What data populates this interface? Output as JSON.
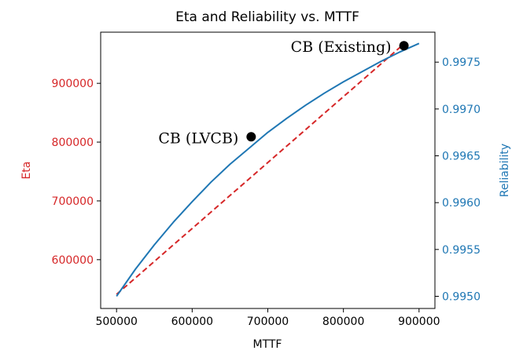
{
  "chart_data": {
    "type": "line",
    "title": "Eta and Reliability vs. MTTF",
    "xlabel": "MTTF",
    "y_left_label": "Eta",
    "y_right_label": "Reliability",
    "xlim": [
      479000,
      921000
    ],
    "y_left_lim": [
      517000,
      987000
    ],
    "y_right_lim": [
      0.99487,
      0.99782
    ],
    "x_ticks": [
      500000,
      600000,
      700000,
      800000,
      900000
    ],
    "x_tick_labels": [
      "500000",
      "600000",
      "700000",
      "800000",
      "900000"
    ],
    "y_left_ticks": [
      600000,
      700000,
      800000,
      900000
    ],
    "y_left_tick_labels": [
      "600000",
      "700000",
      "800000",
      "900000"
    ],
    "y_right_ticks": [
      0.995,
      0.9955,
      0.996,
      0.9965,
      0.997,
      0.9975
    ],
    "y_right_tick_labels": [
      "0.9950",
      "0.9955",
      "0.9960",
      "0.9965",
      "0.9970",
      "0.9975"
    ],
    "grid": false,
    "legend": "none",
    "colors": {
      "eta": "#d62728",
      "reliability": "#1f77b4",
      "points": "#000000"
    },
    "series": [
      {
        "axis": "left",
        "style": "dashed",
        "x": [
          500000,
          880000
        ],
        "y": [
          541000,
          967000
        ]
      },
      {
        "axis": "right",
        "style": "solid",
        "x": [
          500000,
          525000,
          550000,
          575000,
          600000,
          625000,
          650000,
          675000,
          700000,
          725000,
          750000,
          775000,
          800000,
          825000,
          850000,
          875000,
          900000
        ],
        "y": [
          0.995,
          0.99529,
          0.99555,
          0.99579,
          0.99601,
          0.99622,
          0.99641,
          0.99658,
          0.99675,
          0.9969,
          0.99704,
          0.99717,
          0.99729,
          0.9974,
          0.99751,
          0.99761,
          0.9977
        ]
      }
    ],
    "annotations": [
      {
        "label": "CB (LVCB)",
        "x": 678000,
        "y": 809000
      },
      {
        "label": "CB (Existing)",
        "x": 880000,
        "y": 964000
      }
    ]
  }
}
